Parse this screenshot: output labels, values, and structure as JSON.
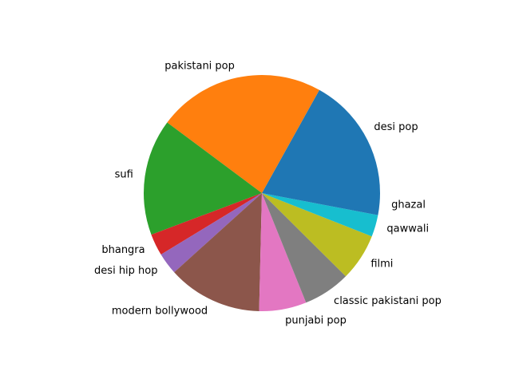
{
  "chart_data": {
    "type": "pie",
    "start_angle_deg": 0,
    "direction": "counterclockwise",
    "slices": [
      {
        "label": "desi pop",
        "value": 17,
        "color": "#1f77b4"
      },
      {
        "label": "pakistani pop",
        "value": 23,
        "color": "#ff7f0e"
      },
      {
        "label": "sufi",
        "value": 16,
        "color": "#2ca02c"
      },
      {
        "label": "bhangra",
        "value": 3,
        "color": "#d62728"
      },
      {
        "label": "desi hip hop",
        "value": 3,
        "color": "#9467bd"
      },
      {
        "label": "modern bollywood",
        "value": 13,
        "color": "#8c564b"
      },
      {
        "label": "punjabi pop",
        "value": 6.5,
        "color": "#e377c2"
      },
      {
        "label": "classic pakistani pop",
        "value": 6.5,
        "color": "#7f7f7f"
      },
      {
        "label": "filmi",
        "value": 6.5,
        "color": "#bcbd22"
      },
      {
        "label": "qawwali",
        "value": 3,
        "color": "#17becf"
      },
      {
        "label": "ghazal",
        "value": 3,
        "color": "#1f77b4"
      }
    ]
  }
}
